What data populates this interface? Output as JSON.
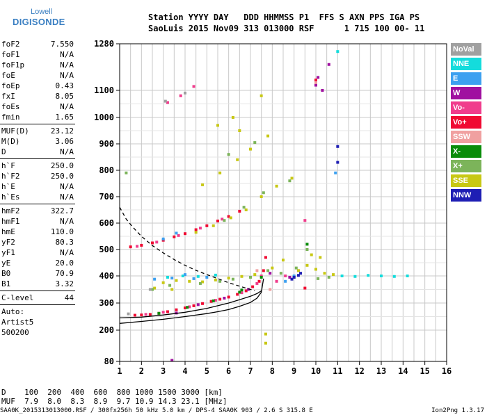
{
  "logo": {
    "line1": "Lowell",
    "line2": "DIGISONDE",
    "color": "#3a7fc2"
  },
  "header": {
    "line1": "Station YYYY DAY   DDD HHMMSS P1  FFS S AXN PPS IGA PS",
    "line2": "SaoLuis 2015 Nov09 313 013000 RSF      1 715 100 00- 11"
  },
  "params": [
    {
      "label": "foF2",
      "value": "7.550"
    },
    {
      "label": "foF1",
      "value": "N/A"
    },
    {
      "label": "foF1p",
      "value": "N/A"
    },
    {
      "label": "foE",
      "value": "N/A"
    },
    {
      "label": "foEp",
      "value": "0.43"
    },
    {
      "label": "fxI",
      "value": "8.05"
    },
    {
      "label": "foEs",
      "value": "N/A"
    },
    {
      "label": "fmin",
      "value": "1.65"
    },
    {
      "label": "MUF(D)",
      "value": "23.12"
    },
    {
      "label": "M(D)",
      "value": "3.06"
    },
    {
      "label": "D",
      "value": "N/A"
    },
    {
      "label": "h`F",
      "value": "250.0"
    },
    {
      "label": "h`F2",
      "value": "250.0"
    },
    {
      "label": "h`E",
      "value": "N/A"
    },
    {
      "label": "h`Es",
      "value": "N/A"
    },
    {
      "label": "hmF2",
      "value": "322.7"
    },
    {
      "label": "hmF1",
      "value": "N/A"
    },
    {
      "label": "hmE",
      "value": "110.0"
    },
    {
      "label": "yF2",
      "value": "80.3"
    },
    {
      "label": "yF1",
      "value": "N/A"
    },
    {
      "label": "yE",
      "value": "20.0"
    },
    {
      "label": "B0",
      "value": "70.9"
    },
    {
      "label": "B1",
      "value": "3.32"
    },
    {
      "label": "C-level",
      "value": "44"
    }
  ],
  "notes": [
    "Auto:",
    "Artist5",
    "500200"
  ],
  "legend": [
    {
      "label": "NoVal",
      "color": "#a0a0a0"
    },
    {
      "label": "NNE",
      "color": "#14dcdc"
    },
    {
      "label": "E",
      "color": "#3ca0f0"
    },
    {
      "label": "W",
      "color": "#a010a0"
    },
    {
      "label": "Vo-",
      "color": "#f03c8c"
    },
    {
      "label": "Vo+",
      "color": "#f00a32"
    },
    {
      "label": "SSW",
      "color": "#f0a0a0"
    },
    {
      "label": "X-",
      "color": "#0a8c0a"
    },
    {
      "label": "X+",
      "color": "#7cb45a"
    },
    {
      "label": "SSE",
      "color": "#c8c814"
    },
    {
      "label": "NNW",
      "color": "#1e1eb4"
    }
  ],
  "distance_table": {
    "line1": "D    100  200  400  600  800 1000 1500 3000 [km]",
    "line2": "MUF  7.9  8.0  8.3  8.9  9.7 10.9 14.3 23.1 [MHz]"
  },
  "footer": {
    "left": "SAA0K_2015313013000.RSF / 300fx256h 50 kHz 5.0 km / DPS-4 SAA0K 903 / 2.6 S 315.8 E",
    "right": "Ion2Png 1.3.17"
  },
  "chart_data": {
    "type": "scatter",
    "xlim": [
      1,
      16
    ],
    "ylim": [
      80,
      1280
    ],
    "x_ticks": [
      "1",
      "2",
      "3",
      "4",
      "5",
      "6",
      "7",
      "8",
      "9",
      "10",
      "11",
      "12",
      "13",
      "14",
      "15",
      "16"
    ],
    "y_ticks": [
      "80",
      "200",
      "300",
      "400",
      "500",
      "600",
      "700",
      "800",
      "900",
      "1000",
      "1100",
      "1280"
    ],
    "grid": true,
    "series": [
      {
        "name": "Vo+",
        "color": "#f00a32",
        "points": [
          [
            1.7,
            255
          ],
          [
            2.0,
            256
          ],
          [
            2.4,
            258
          ],
          [
            2.8,
            262
          ],
          [
            3.2,
            268
          ],
          [
            3.6,
            275
          ],
          [
            4.0,
            282
          ],
          [
            4.4,
            290
          ],
          [
            4.8,
            298
          ],
          [
            5.2,
            306
          ],
          [
            5.6,
            314
          ],
          [
            6.0,
            322
          ],
          [
            6.4,
            332
          ],
          [
            6.8,
            345
          ],
          [
            7.1,
            360
          ],
          [
            7.4,
            380
          ],
          [
            7.6,
            420
          ],
          [
            7.7,
            470
          ],
          [
            1.5,
            510
          ],
          [
            2.0,
            516
          ],
          [
            2.5,
            525
          ],
          [
            3.0,
            535
          ],
          [
            3.5,
            548
          ],
          [
            4.0,
            560
          ],
          [
            4.5,
            575
          ],
          [
            5.0,
            590
          ],
          [
            5.5,
            608
          ],
          [
            6.0,
            625
          ],
          [
            6.5,
            645
          ],
          [
            9.5,
            355
          ],
          [
            10.0,
            1140
          ]
        ]
      },
      {
        "name": "Vo-",
        "color": "#f03c8c",
        "points": [
          [
            2.2,
            258
          ],
          [
            3.0,
            266
          ],
          [
            4.2,
            286
          ],
          [
            5.4,
            310
          ],
          [
            6.6,
            338
          ],
          [
            7.3,
            372
          ],
          [
            7.5,
            400
          ],
          [
            8.2,
            380
          ],
          [
            8.6,
            400
          ],
          [
            9.2,
            420
          ],
          [
            9.5,
            610
          ],
          [
            1.8,
            512
          ],
          [
            2.7,
            528
          ],
          [
            3.7,
            553
          ],
          [
            4.7,
            581
          ],
          [
            5.7,
            615
          ],
          [
            3.2,
            1055
          ],
          [
            3.8,
            1080
          ],
          [
            4.4,
            1115
          ]
        ]
      },
      {
        "name": "W",
        "color": "#a010a0",
        "points": [
          [
            3.6,
            263
          ],
          [
            4.6,
            294
          ],
          [
            5.8,
            318
          ],
          [
            6.9,
            350
          ],
          [
            7.9,
            410
          ],
          [
            8.8,
            395
          ],
          [
            10.0,
            1120
          ],
          [
            10.1,
            1150
          ],
          [
            10.3,
            1100
          ],
          [
            10.6,
            1200
          ],
          [
            3.4,
            84
          ]
        ]
      },
      {
        "name": "SSE",
        "color": "#c8c814",
        "points": [
          [
            3.0,
            375
          ],
          [
            3.6,
            383
          ],
          [
            4.2,
            380
          ],
          [
            4.8,
            378
          ],
          [
            5.4,
            385
          ],
          [
            6.0,
            392
          ],
          [
            6.6,
            398
          ],
          [
            7.2,
            405
          ],
          [
            8.0,
            430
          ],
          [
            8.5,
            460
          ],
          [
            9.2,
            420
          ],
          [
            9.6,
            440
          ],
          [
            10.0,
            425
          ],
          [
            10.4,
            410
          ],
          [
            10.8,
            405
          ],
          [
            9.8,
            480
          ],
          [
            10.2,
            470
          ],
          [
            4.5,
            565
          ],
          [
            5.3,
            590
          ],
          [
            6.1,
            620
          ],
          [
            6.8,
            650
          ],
          [
            7.5,
            700
          ],
          [
            8.2,
            740
          ],
          [
            8.9,
            770
          ],
          [
            4.8,
            745
          ],
          [
            5.6,
            790
          ],
          [
            6.4,
            840
          ],
          [
            7.0,
            880
          ],
          [
            7.8,
            930
          ],
          [
            5.5,
            970
          ],
          [
            6.2,
            1000
          ],
          [
            7.5,
            1080
          ],
          [
            2.6,
            355
          ],
          [
            3.4,
            350
          ],
          [
            6.5,
            950
          ],
          [
            7.7,
            150
          ],
          [
            7.7,
            185
          ]
        ]
      },
      {
        "name": "X+",
        "color": "#7cb45a",
        "points": [
          [
            2.5,
            350
          ],
          [
            3.3,
            365
          ],
          [
            4.7,
            372
          ],
          [
            5.6,
            380
          ],
          [
            6.2,
            388
          ],
          [
            7.0,
            395
          ],
          [
            7.8,
            420
          ],
          [
            8.4,
            410
          ],
          [
            9.1,
            430
          ],
          [
            9.6,
            500
          ],
          [
            10.1,
            390
          ],
          [
            10.6,
            395
          ],
          [
            5.8,
            610
          ],
          [
            6.7,
            660
          ],
          [
            7.6,
            715
          ],
          [
            8.8,
            760
          ],
          [
            6.0,
            860
          ],
          [
            7.2,
            905
          ],
          [
            1.3,
            790
          ]
        ]
      },
      {
        "name": "X-",
        "color": "#0a8c0a",
        "points": [
          [
            2.8,
            262
          ],
          [
            4.1,
            284
          ],
          [
            5.3,
            308
          ],
          [
            6.5,
            340
          ],
          [
            7.5,
            395
          ],
          [
            9.0,
            395
          ],
          [
            9.6,
            520
          ],
          [
            6.6,
            348
          ]
        ]
      },
      {
        "name": "NNE",
        "color": "#14dcdc",
        "points": [
          [
            3.2,
            395
          ],
          [
            3.9,
            400
          ],
          [
            4.6,
            398
          ],
          [
            5.4,
            403
          ],
          [
            11.2,
            400
          ],
          [
            11.8,
            398
          ],
          [
            12.4,
            402
          ],
          [
            13.0,
            400
          ],
          [
            13.6,
            398
          ],
          [
            14.2,
            400
          ],
          [
            11.0,
            1250
          ]
        ]
      },
      {
        "name": "E",
        "color": "#3ca0f0",
        "points": [
          [
            2.6,
            388
          ],
          [
            3.4,
            392
          ],
          [
            4.0,
            405
          ],
          [
            4.4,
            390
          ],
          [
            5.0,
            395
          ],
          [
            8.6,
            380
          ],
          [
            9.0,
            400
          ],
          [
            10.9,
            790
          ],
          [
            3.0,
            540
          ],
          [
            3.6,
            562
          ]
        ]
      },
      {
        "name": "NNW",
        "color": "#1e1eb4",
        "points": [
          [
            8.9,
            388
          ],
          [
            9.0,
            395
          ],
          [
            9.2,
            402
          ],
          [
            9.3,
            410
          ],
          [
            11.0,
            830
          ],
          [
            11.0,
            890
          ]
        ]
      },
      {
        "name": "SSW",
        "color": "#f0a0a0",
        "points": [
          [
            7.3,
            420
          ],
          [
            7.9,
            350
          ],
          [
            10.0,
            1130
          ]
        ]
      },
      {
        "name": "NoVal",
        "color": "#a0a0a0",
        "points": [
          [
            1.4,
            260
          ],
          [
            2.4,
            350
          ],
          [
            3.1,
            1060
          ],
          [
            4.0,
            1090
          ]
        ]
      }
    ],
    "curves": [
      {
        "style": "dashed",
        "color": "#000000",
        "points": [
          [
            1.0,
            660
          ],
          [
            1.3,
            615
          ],
          [
            1.6,
            585
          ],
          [
            2.0,
            550
          ],
          [
            2.5,
            515
          ],
          [
            3.0,
            487
          ],
          [
            3.5,
            462
          ],
          [
            4.0,
            440
          ],
          [
            4.5,
            421
          ],
          [
            5.0,
            405
          ],
          [
            5.5,
            390
          ],
          [
            6.0,
            375
          ],
          [
            6.5,
            362
          ],
          [
            7.0,
            350
          ],
          [
            7.2,
            346
          ]
        ]
      },
      {
        "style": "solid",
        "color": "#000000",
        "points": [
          [
            1.0,
            225
          ],
          [
            2.0,
            232
          ],
          [
            3.0,
            240
          ],
          [
            4.0,
            250
          ],
          [
            5.0,
            261
          ],
          [
            5.5,
            268
          ],
          [
            6.0,
            276
          ],
          [
            6.5,
            288
          ],
          [
            7.0,
            302
          ],
          [
            7.3,
            318
          ],
          [
            7.5,
            340
          ],
          [
            7.6,
            390
          ]
        ]
      },
      {
        "style": "solid",
        "color": "#000000",
        "points": [
          [
            1.0,
            245
          ],
          [
            2.0,
            248
          ],
          [
            3.0,
            256
          ],
          [
            4.0,
            266
          ],
          [
            5.0,
            280
          ],
          [
            5.5,
            290
          ],
          [
            6.0,
            300
          ],
          [
            6.5,
            312
          ],
          [
            7.0,
            325
          ],
          [
            7.3,
            335
          ],
          [
            7.5,
            345
          ]
        ]
      }
    ]
  }
}
